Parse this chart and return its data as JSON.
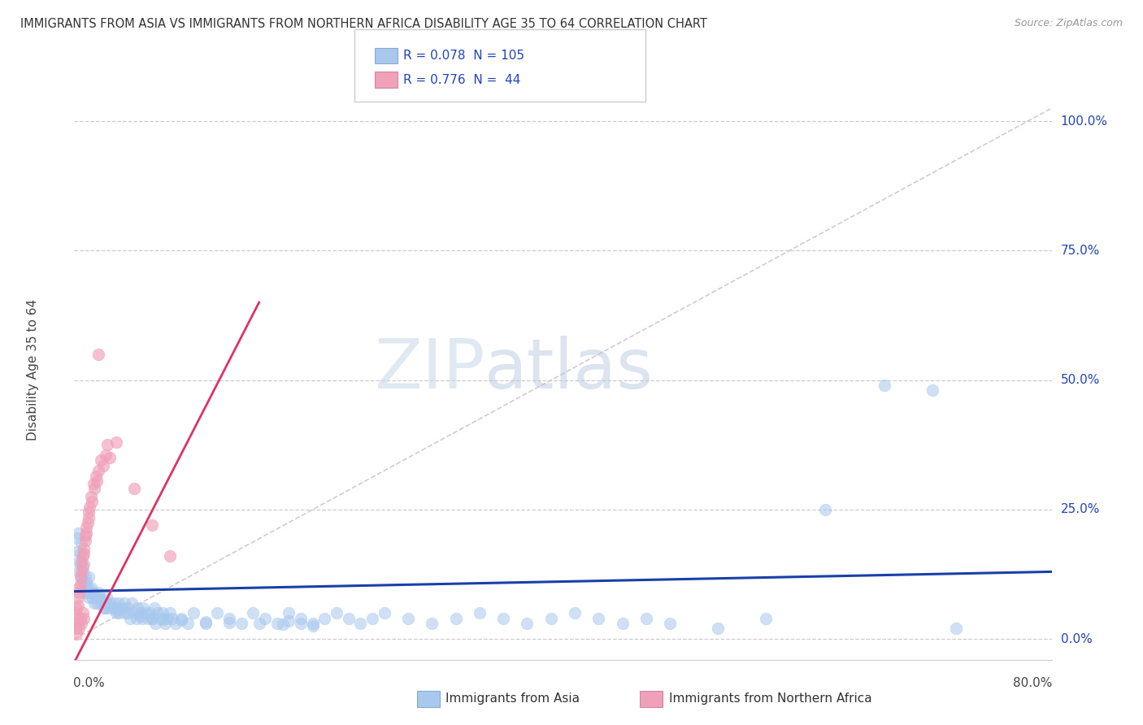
{
  "title": "IMMIGRANTS FROM ASIA VS IMMIGRANTS FROM NORTHERN AFRICA DISABILITY AGE 35 TO 64 CORRELATION CHART",
  "source": "Source: ZipAtlas.com",
  "ylabel": "Disability Age 35 to 64",
  "xlim": [
    0.0,
    0.82
  ],
  "ylim": [
    -0.04,
    1.08
  ],
  "ytick_vals": [
    0.0,
    0.25,
    0.5,
    0.75,
    1.0
  ],
  "ytick_labels": [
    "0.0%",
    "25.0%",
    "50.0%",
    "75.0%",
    "100.0%"
  ],
  "legend_text_color": "#2244bb",
  "asia_color": "#a8c8ee",
  "asia_line_color": "#1a3faa",
  "africa_color": "#f0a0b8",
  "africa_line_color": "#dd3366",
  "ref_line_color": "#d0c8cc",
  "watermark_color": "#ccddef",
  "legend_label_asia": "Immigrants from Asia",
  "legend_label_africa": "Immigrants from Northern Africa",
  "asia_points": [
    [
      0.002,
      0.195
    ],
    [
      0.003,
      0.17
    ],
    [
      0.003,
      0.205
    ],
    [
      0.004,
      0.15
    ],
    [
      0.004,
      0.13
    ],
    [
      0.005,
      0.145
    ],
    [
      0.005,
      0.165
    ],
    [
      0.006,
      0.12
    ],
    [
      0.006,
      0.185
    ],
    [
      0.007,
      0.1
    ],
    [
      0.007,
      0.13
    ],
    [
      0.008,
      0.11
    ],
    [
      0.008,
      0.145
    ],
    [
      0.009,
      0.1
    ],
    [
      0.009,
      0.12
    ],
    [
      0.01,
      0.09
    ],
    [
      0.01,
      0.11
    ],
    [
      0.011,
      0.1
    ],
    [
      0.012,
      0.08
    ],
    [
      0.012,
      0.12
    ],
    [
      0.013,
      0.09
    ],
    [
      0.014,
      0.1
    ],
    [
      0.015,
      0.08
    ],
    [
      0.016,
      0.09
    ],
    [
      0.017,
      0.07
    ],
    [
      0.018,
      0.08
    ],
    [
      0.019,
      0.07
    ],
    [
      0.02,
      0.09
    ],
    [
      0.021,
      0.08
    ],
    [
      0.022,
      0.07
    ],
    [
      0.024,
      0.075
    ],
    [
      0.025,
      0.06
    ],
    [
      0.026,
      0.07
    ],
    [
      0.027,
      0.08
    ],
    [
      0.028,
      0.06
    ],
    [
      0.03,
      0.07
    ],
    [
      0.032,
      0.06
    ],
    [
      0.033,
      0.07
    ],
    [
      0.035,
      0.05
    ],
    [
      0.036,
      0.06
    ],
    [
      0.037,
      0.07
    ],
    [
      0.038,
      0.05
    ],
    [
      0.04,
      0.06
    ],
    [
      0.042,
      0.07
    ],
    [
      0.043,
      0.05
    ],
    [
      0.045,
      0.06
    ],
    [
      0.047,
      0.04
    ],
    [
      0.048,
      0.07
    ],
    [
      0.05,
      0.05
    ],
    [
      0.052,
      0.04
    ],
    [
      0.053,
      0.06
    ],
    [
      0.055,
      0.05
    ],
    [
      0.057,
      0.04
    ],
    [
      0.058,
      0.06
    ],
    [
      0.06,
      0.05
    ],
    [
      0.062,
      0.04
    ],
    [
      0.063,
      0.05
    ],
    [
      0.065,
      0.04
    ],
    [
      0.067,
      0.06
    ],
    [
      0.068,
      0.03
    ],
    [
      0.07,
      0.05
    ],
    [
      0.072,
      0.04
    ],
    [
      0.074,
      0.05
    ],
    [
      0.076,
      0.03
    ],
    [
      0.078,
      0.04
    ],
    [
      0.08,
      0.05
    ],
    [
      0.082,
      0.04
    ],
    [
      0.085,
      0.03
    ],
    [
      0.09,
      0.04
    ],
    [
      0.095,
      0.03
    ],
    [
      0.1,
      0.05
    ],
    [
      0.11,
      0.03
    ],
    [
      0.12,
      0.05
    ],
    [
      0.13,
      0.04
    ],
    [
      0.14,
      0.03
    ],
    [
      0.15,
      0.05
    ],
    [
      0.16,
      0.04
    ],
    [
      0.17,
      0.03
    ],
    [
      0.18,
      0.05
    ],
    [
      0.19,
      0.04
    ],
    [
      0.2,
      0.03
    ],
    [
      0.21,
      0.04
    ],
    [
      0.22,
      0.05
    ],
    [
      0.23,
      0.04
    ],
    [
      0.24,
      0.03
    ],
    [
      0.25,
      0.04
    ],
    [
      0.26,
      0.05
    ],
    [
      0.28,
      0.04
    ],
    [
      0.3,
      0.03
    ],
    [
      0.32,
      0.04
    ],
    [
      0.34,
      0.05
    ],
    [
      0.36,
      0.04
    ],
    [
      0.38,
      0.03
    ],
    [
      0.4,
      0.04
    ],
    [
      0.42,
      0.05
    ],
    [
      0.44,
      0.04
    ],
    [
      0.46,
      0.03
    ],
    [
      0.48,
      0.04
    ],
    [
      0.5,
      0.03
    ],
    [
      0.54,
      0.02
    ],
    [
      0.58,
      0.04
    ],
    [
      0.63,
      0.25
    ],
    [
      0.68,
      0.49
    ],
    [
      0.72,
      0.48
    ],
    [
      0.025,
      0.06
    ],
    [
      0.035,
      0.055
    ],
    [
      0.045,
      0.05
    ],
    [
      0.055,
      0.045
    ],
    [
      0.065,
      0.04
    ],
    [
      0.075,
      0.038
    ],
    [
      0.09,
      0.036
    ],
    [
      0.11,
      0.034
    ],
    [
      0.13,
      0.032
    ],
    [
      0.155,
      0.03
    ],
    [
      0.175,
      0.028
    ],
    [
      0.18,
      0.035
    ],
    [
      0.19,
      0.03
    ],
    [
      0.2,
      0.025
    ],
    [
      0.74,
      0.02
    ]
  ],
  "africa_points": [
    [
      0.001,
      0.05
    ],
    [
      0.002,
      0.06
    ],
    [
      0.002,
      0.04
    ],
    [
      0.003,
      0.08
    ],
    [
      0.003,
      0.065
    ],
    [
      0.004,
      0.1
    ],
    [
      0.004,
      0.09
    ],
    [
      0.005,
      0.12
    ],
    [
      0.005,
      0.105
    ],
    [
      0.006,
      0.13
    ],
    [
      0.006,
      0.15
    ],
    [
      0.007,
      0.14
    ],
    [
      0.007,
      0.16
    ],
    [
      0.008,
      0.175
    ],
    [
      0.008,
      0.165
    ],
    [
      0.009,
      0.19
    ],
    [
      0.009,
      0.2
    ],
    [
      0.01,
      0.215
    ],
    [
      0.01,
      0.205
    ],
    [
      0.011,
      0.225
    ],
    [
      0.012,
      0.245
    ],
    [
      0.012,
      0.235
    ],
    [
      0.013,
      0.255
    ],
    [
      0.014,
      0.275
    ],
    [
      0.015,
      0.265
    ],
    [
      0.016,
      0.3
    ],
    [
      0.017,
      0.29
    ],
    [
      0.018,
      0.315
    ],
    [
      0.019,
      0.305
    ],
    [
      0.02,
      0.325
    ],
    [
      0.022,
      0.345
    ],
    [
      0.024,
      0.335
    ],
    [
      0.026,
      0.355
    ],
    [
      0.028,
      0.375
    ],
    [
      0.001,
      0.02
    ],
    [
      0.002,
      0.01
    ],
    [
      0.003,
      0.03
    ],
    [
      0.004,
      0.02
    ],
    [
      0.005,
      0.04
    ],
    [
      0.006,
      0.03
    ],
    [
      0.007,
      0.05
    ],
    [
      0.008,
      0.04
    ],
    [
      0.02,
      0.55
    ],
    [
      0.03,
      0.35
    ],
    [
      0.035,
      0.38
    ],
    [
      0.05,
      0.29
    ],
    [
      0.065,
      0.22
    ],
    [
      0.08,
      0.16
    ]
  ],
  "asia_trend_x0": 0.0,
  "asia_trend_x1": 0.82,
  "asia_trend_y0": 0.092,
  "asia_trend_y1": 0.13,
  "africa_trend_x0": 0.0,
  "africa_trend_x1": 0.155,
  "africa_trend_y0": -0.045,
  "africa_trend_y1": 0.65
}
